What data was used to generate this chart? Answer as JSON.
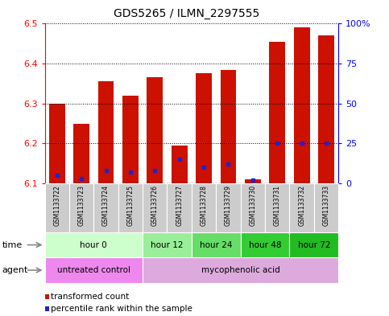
{
  "title": "GDS5265 / ILMN_2297555",
  "samples": [
    "GSM1133722",
    "GSM1133723",
    "GSM1133724",
    "GSM1133725",
    "GSM1133726",
    "GSM1133727",
    "GSM1133728",
    "GSM1133729",
    "GSM1133730",
    "GSM1133731",
    "GSM1133732",
    "GSM1133733"
  ],
  "transformed_counts": [
    6.3,
    6.25,
    6.355,
    6.32,
    6.365,
    6.195,
    6.375,
    6.385,
    6.11,
    6.455,
    6.49,
    6.47
  ],
  "percentile_ranks": [
    5,
    3,
    8,
    7,
    8,
    15,
    10,
    12,
    2,
    25,
    25,
    25
  ],
  "ymin": 6.1,
  "ymax": 6.5,
  "y_ticks": [
    6.1,
    6.2,
    6.3,
    6.4,
    6.5
  ],
  "right_yticks": [
    0,
    25,
    50,
    75,
    100
  ],
  "right_ytick_labels": [
    "0",
    "25",
    "50",
    "75",
    "100%"
  ],
  "bar_color": "#cc1100",
  "percentile_color": "#2222cc",
  "time_groups": [
    {
      "label": "hour 0",
      "start": 0,
      "end": 4,
      "color": "#ccffcc"
    },
    {
      "label": "hour 12",
      "start": 4,
      "end": 6,
      "color": "#99ee99"
    },
    {
      "label": "hour 24",
      "start": 6,
      "end": 8,
      "color": "#66dd66"
    },
    {
      "label": "hour 48",
      "start": 8,
      "end": 10,
      "color": "#33cc33"
    },
    {
      "label": "hour 72",
      "start": 10,
      "end": 12,
      "color": "#22bb22"
    }
  ],
  "agent_groups": [
    {
      "label": "untreated control",
      "start": 0,
      "end": 4,
      "color": "#ee88ee"
    },
    {
      "label": "mycophenolic acid",
      "start": 4,
      "end": 12,
      "color": "#ddaadd"
    }
  ],
  "legend_red": "transformed count",
  "legend_blue": "percentile rank within the sample",
  "label_time": "time",
  "label_agent": "agent",
  "figsize": [
    4.83,
    3.93
  ],
  "dpi": 100
}
